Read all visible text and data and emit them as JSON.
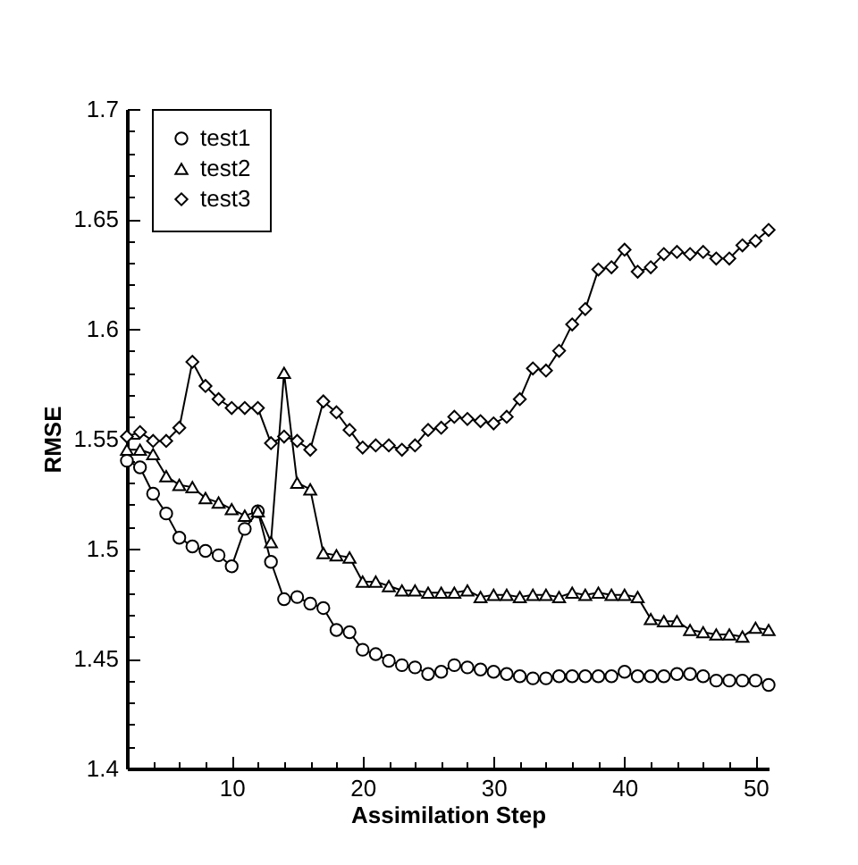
{
  "chart_data": {
    "type": "line",
    "xlabel": "Assimilation Step",
    "ylabel": "RMSE",
    "x": [
      2,
      3,
      4,
      5,
      6,
      7,
      8,
      9,
      10,
      11,
      12,
      13,
      14,
      15,
      16,
      17,
      18,
      19,
      20,
      21,
      22,
      23,
      24,
      25,
      26,
      27,
      28,
      29,
      30,
      31,
      32,
      33,
      34,
      35,
      36,
      37,
      38,
      39,
      40,
      41,
      42,
      43,
      44,
      45,
      46,
      47,
      48,
      49,
      50,
      51
    ],
    "series": [
      {
        "name": "test1",
        "color": "#000000",
        "marker": "circle",
        "values": [
          1.54,
          1.537,
          1.525,
          1.516,
          1.505,
          1.501,
          1.499,
          1.497,
          1.492,
          1.509,
          1.517,
          1.494,
          1.477,
          1.478,
          1.475,
          1.473,
          1.463,
          1.462,
          1.454,
          1.452,
          1.449,
          1.447,
          1.446,
          1.443,
          1.444,
          1.447,
          1.446,
          1.445,
          1.444,
          1.443,
          1.442,
          1.441,
          1.441,
          1.442,
          1.442,
          1.442,
          1.442,
          1.442,
          1.444,
          1.442,
          1.442,
          1.442,
          1.443,
          1.443,
          1.442,
          1.44,
          1.44,
          1.44,
          1.44,
          1.438
        ]
      },
      {
        "name": "test2",
        "color": "#000000",
        "marker": "triangle",
        "values": [
          1.545,
          1.545,
          1.543,
          1.533,
          1.529,
          1.528,
          1.523,
          1.521,
          1.518,
          1.515,
          1.517,
          1.503,
          1.58,
          1.53,
          1.527,
          1.498,
          1.497,
          1.496,
          1.485,
          1.485,
          1.483,
          1.481,
          1.481,
          1.48,
          1.48,
          1.48,
          1.481,
          1.478,
          1.479,
          1.479,
          1.478,
          1.479,
          1.479,
          1.478,
          1.48,
          1.479,
          1.48,
          1.479,
          1.479,
          1.478,
          1.468,
          1.467,
          1.467,
          1.463,
          1.462,
          1.461,
          1.461,
          1.46,
          1.464,
          1.463
        ]
      },
      {
        "name": "test3",
        "color": "#000000",
        "marker": "diamond",
        "values": [
          1.551,
          1.553,
          1.549,
          1.549,
          1.555,
          1.585,
          1.574,
          1.568,
          1.564,
          1.564,
          1.564,
          1.548,
          1.551,
          1.549,
          1.545,
          1.567,
          1.562,
          1.554,
          1.546,
          1.547,
          1.547,
          1.545,
          1.547,
          1.554,
          1.555,
          1.56,
          1.559,
          1.558,
          1.557,
          1.56,
          1.568,
          1.582,
          1.581,
          1.59,
          1.602,
          1.609,
          1.627,
          1.628,
          1.636,
          1.626,
          1.628,
          1.634,
          1.635,
          1.634,
          1.635,
          1.632,
          1.632,
          1.638,
          1.64,
          1.645
        ]
      }
    ],
    "xlim": [
      2,
      51
    ],
    "xticks": [
      {
        "value": 4,
        "label": null
      },
      {
        "value": 6,
        "label": null
      },
      {
        "value": 8,
        "label": null
      },
      10,
      {
        "value": 12,
        "label": null
      },
      {
        "value": 14,
        "label": null
      },
      {
        "value": 16,
        "label": null
      },
      {
        "value": 18,
        "label": null
      },
      20,
      {
        "value": 22,
        "label": null
      },
      {
        "value": 24,
        "label": null
      },
      {
        "value": 26,
        "label": null
      },
      {
        "value": 28,
        "label": null
      },
      30,
      {
        "value": 32,
        "label": null
      },
      {
        "value": 34,
        "label": null
      },
      {
        "value": 36,
        "label": null
      },
      {
        "value": 38,
        "label": null
      },
      40,
      {
        "value": 42,
        "label": null
      },
      {
        "value": 44,
        "label": null
      },
      {
        "value": 46,
        "label": null
      },
      {
        "value": 48,
        "label": null
      },
      50
    ],
    "ylim": [
      1.4,
      1.7
    ],
    "yticks": [
      1.4,
      {
        "value": 1.41,
        "label": null
      },
      {
        "value": 1.42,
        "label": null
      },
      {
        "value": 1.43,
        "label": null
      },
      {
        "value": 1.44,
        "label": null
      },
      1.45,
      {
        "value": 1.46,
        "label": null
      },
      {
        "value": 1.47,
        "label": null
      },
      {
        "value": 1.48,
        "label": null
      },
      {
        "value": 1.49,
        "label": null
      },
      1.5,
      {
        "value": 1.51,
        "label": null
      },
      {
        "value": 1.52,
        "label": null
      },
      {
        "value": 1.53,
        "label": null
      },
      {
        "value": 1.54,
        "label": null
      },
      1.55,
      {
        "value": 1.56,
        "label": null
      },
      {
        "value": 1.57,
        "label": null
      },
      {
        "value": 1.58,
        "label": null
      },
      {
        "value": 1.59,
        "label": null
      },
      1.6,
      {
        "value": 1.61,
        "label": null
      },
      {
        "value": 1.62,
        "label": null
      },
      {
        "value": 1.63,
        "label": null
      },
      {
        "value": 1.64,
        "label": null
      },
      1.65,
      {
        "value": 1.66,
        "label": null
      },
      {
        "value": 1.67,
        "label": null
      },
      {
        "value": 1.68,
        "label": null
      },
      {
        "value": 1.69,
        "label": null
      },
      1.7
    ],
    "grid": false,
    "legend": "top left",
    "line_style": "solid"
  }
}
